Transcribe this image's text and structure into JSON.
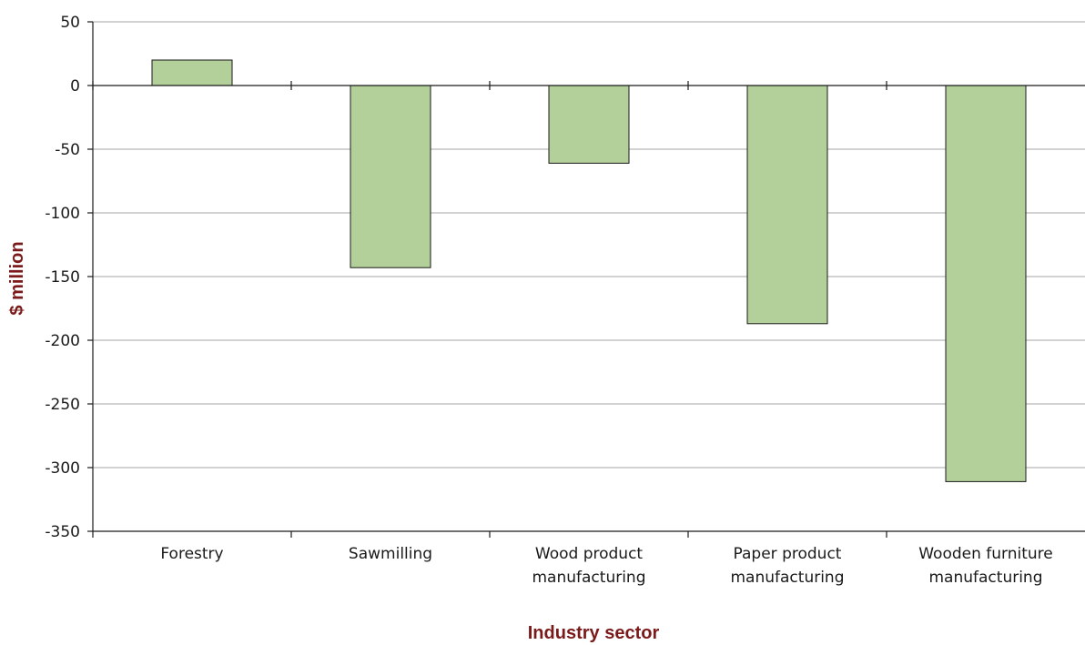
{
  "chart_data": {
    "type": "bar",
    "title": "",
    "xlabel": "Industry sector",
    "ylabel": "$ million",
    "categories": [
      [
        "Forestry"
      ],
      [
        "Sawmilling"
      ],
      [
        "Wood product",
        "manufacturing"
      ],
      [
        "Paper product",
        "manufacturing"
      ],
      [
        "Wooden furniture",
        "manufacturing"
      ]
    ],
    "values": [
      20,
      -143,
      -61,
      -187,
      -311
    ],
    "ylim": [
      -350,
      50
    ],
    "yticks": [
      50,
      0,
      -50,
      -100,
      -150,
      -200,
      -250,
      -300,
      -350
    ],
    "grid": true,
    "legend": "none"
  },
  "colors": {
    "bar_fill": "#b3d09a",
    "bar_stroke": "#1a1a1a",
    "gridline": "#a6a6a6",
    "axis": "#1a1a1a",
    "axis_title": "#7a1a1a"
  }
}
